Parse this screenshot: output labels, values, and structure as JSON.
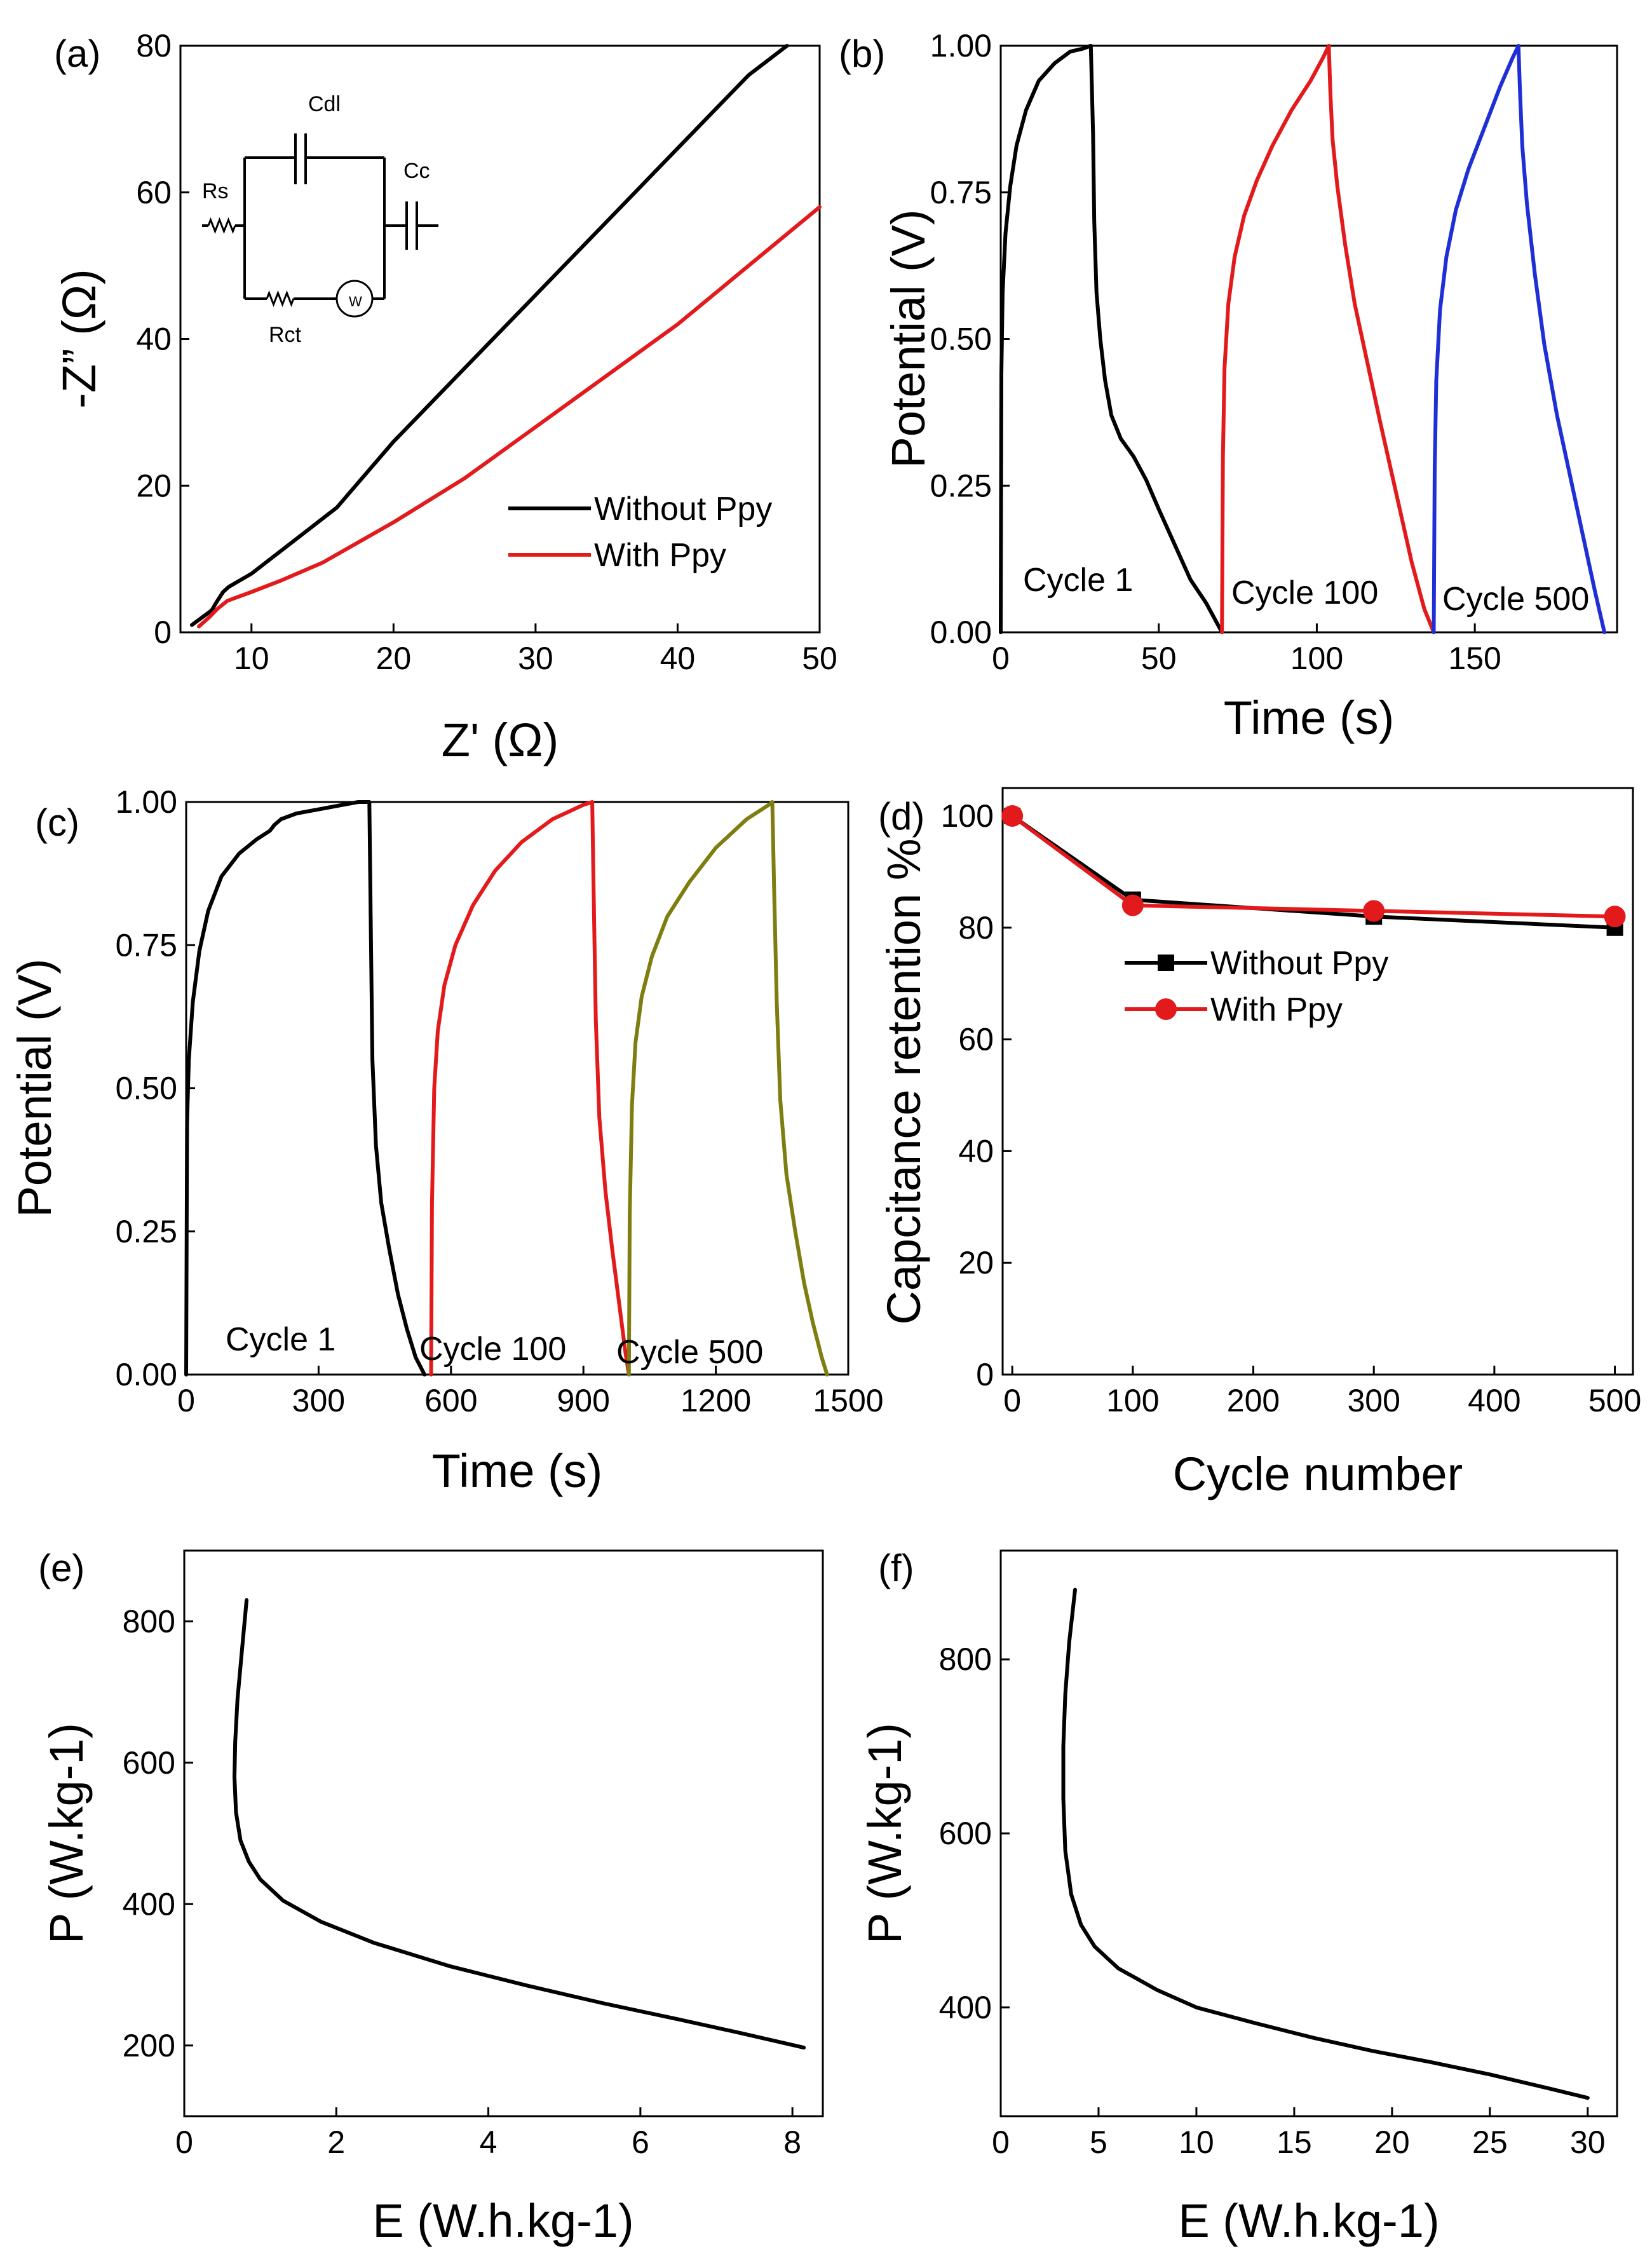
{
  "chart_data": [
    {
      "panel": "(a)",
      "type": "line",
      "xlabel": "Z' (Ω)",
      "ylabel": "-Z” (Ω)",
      "xlim": [
        5,
        50
      ],
      "ylim": [
        0,
        80
      ],
      "xticks": [
        10,
        20,
        30,
        40,
        50
      ],
      "yticks": [
        0,
        20,
        40,
        60,
        80
      ],
      "legend_position": "bottom-right",
      "series": [
        {
          "name": "Without Ppy",
          "color": "#000000",
          "x": [
            5.8,
            7.2,
            7.5,
            8.0,
            8.4,
            10,
            12,
            14,
            16,
            20,
            25,
            30,
            35,
            40,
            45,
            47.7
          ],
          "y": [
            1,
            3,
            4,
            5.5,
            6.2,
            8,
            11,
            14,
            17,
            26,
            36,
            46,
            56,
            66,
            76,
            80
          ]
        },
        {
          "name": "With Ppy",
          "color": "#e31a1c",
          "x": [
            6.3,
            7.0,
            7.6,
            8.3,
            10,
            12,
            15,
            20,
            25,
            30,
            35,
            40,
            45,
            50
          ],
          "y": [
            0.8,
            2,
            3.2,
            4.3,
            5.5,
            7,
            9.5,
            15,
            21,
            28,
            35,
            42,
            50,
            58
          ]
        }
      ],
      "inset": {
        "labels": [
          "Rs",
          "Cdl",
          "Cc",
          "Rct",
          "W"
        ]
      }
    },
    {
      "panel": "(b)",
      "type": "line",
      "xlabel": "Time (s)",
      "ylabel": "Potential (V)",
      "xlim": [
        0,
        195
      ],
      "ylim": [
        0,
        1.0
      ],
      "xticks": [
        0,
        50,
        100,
        150
      ],
      "yticks": [
        0.0,
        0.25,
        0.5,
        0.75,
        1.0
      ],
      "ytick_labels": [
        "0.00",
        "0.25",
        "0.50",
        "0.75",
        "1.00"
      ],
      "series": [
        {
          "name": "Cycle 1",
          "color": "#000000",
          "x": [
            0,
            0.2,
            0.6,
            1.5,
            3,
            5,
            8,
            12,
            17,
            22,
            26,
            28.5,
            29.2,
            29.6,
            30.3,
            31.5,
            33,
            35,
            38,
            42,
            46,
            50,
            55,
            60,
            65,
            70
          ],
          "y": [
            0,
            0.44,
            0.58,
            0.68,
            0.76,
            0.83,
            0.89,
            0.94,
            0.97,
            0.99,
            0.995,
            1.0,
            0.85,
            0.7,
            0.58,
            0.5,
            0.43,
            0.37,
            0.33,
            0.3,
            0.26,
            0.21,
            0.15,
            0.09,
            0.05,
            0.0
          ]
        },
        {
          "name": "Cycle 100",
          "color": "#e31a1c",
          "x": [
            70,
            70.3,
            70.8,
            72,
            74,
            77,
            81,
            86,
            92,
            98,
            102,
            103.8,
            104.3,
            105,
            106.5,
            109,
            112,
            116,
            120,
            125,
            130,
            134,
            137
          ],
          "y": [
            0,
            0.3,
            0.45,
            0.56,
            0.64,
            0.71,
            0.77,
            0.83,
            0.89,
            0.94,
            0.98,
            1.0,
            0.92,
            0.84,
            0.76,
            0.66,
            0.56,
            0.46,
            0.36,
            0.24,
            0.12,
            0.04,
            0.0
          ]
        },
        {
          "name": "Cycle 500",
          "color": "#1f2fd6",
          "x": [
            137,
            137.3,
            137.8,
            139,
            141,
            144,
            148,
            153,
            158,
            162,
            163.8,
            164.3,
            165,
            166.5,
            169,
            172,
            176,
            180,
            184,
            188,
            191
          ],
          "y": [
            0,
            0.28,
            0.43,
            0.55,
            0.64,
            0.72,
            0.79,
            0.86,
            0.93,
            0.98,
            1.0,
            0.92,
            0.83,
            0.73,
            0.61,
            0.49,
            0.37,
            0.27,
            0.17,
            0.07,
            0.0
          ]
        }
      ],
      "annotations": [
        "Cycle 1",
        "Cycle 100",
        "Cycle 500"
      ]
    },
    {
      "panel": "(c)",
      "type": "line",
      "xlabel": "Time (s)",
      "ylabel": "Potential (V)",
      "xlim": [
        0,
        1500
      ],
      "ylim": [
        0,
        1.0
      ],
      "xticks": [
        0,
        300,
        600,
        900,
        1200,
        1500
      ],
      "yticks": [
        0.0,
        0.25,
        0.5,
        0.75,
        1.0
      ],
      "ytick_labels": [
        "0.00",
        "0.25",
        "0.50",
        "0.75",
        "1.00"
      ],
      "series": [
        {
          "name": "Cycle 1",
          "color": "#000000",
          "x": [
            0,
            2,
            6,
            15,
            30,
            50,
            80,
            120,
            160,
            190,
            200,
            215,
            250,
            320,
            390,
            415,
            418,
            422,
            430,
            442,
            460,
            480,
            500,
            520,
            540
          ],
          "y": [
            0,
            0.44,
            0.55,
            0.65,
            0.74,
            0.81,
            0.87,
            0.91,
            0.935,
            0.95,
            0.96,
            0.97,
            0.98,
            0.99,
            1.0,
            1.0,
            0.8,
            0.55,
            0.4,
            0.3,
            0.22,
            0.14,
            0.08,
            0.03,
            0.0
          ]
        },
        {
          "name": "Cycle 100",
          "color": "#e31a1c",
          "x": [
            555,
            557,
            562,
            570,
            585,
            610,
            650,
            700,
            760,
            830,
            900,
            920,
            923,
            928,
            936,
            950,
            965,
            980,
            995,
            1003
          ],
          "y": [
            0,
            0.3,
            0.5,
            0.6,
            0.68,
            0.75,
            0.82,
            0.88,
            0.93,
            0.97,
            0.995,
            1.0,
            0.85,
            0.62,
            0.45,
            0.32,
            0.22,
            0.13,
            0.04,
            0.0
          ]
        },
        {
          "name": "Cycle 500",
          "color": "#7e7e10",
          "x": [
            1003,
            1005,
            1010,
            1018,
            1032,
            1055,
            1090,
            1140,
            1200,
            1270,
            1320,
            1328,
            1332,
            1338,
            1346,
            1360,
            1380,
            1400,
            1420,
            1440,
            1452
          ],
          "y": [
            0,
            0.28,
            0.47,
            0.58,
            0.66,
            0.73,
            0.8,
            0.86,
            0.92,
            0.97,
            0.995,
            1.0,
            0.85,
            0.65,
            0.48,
            0.35,
            0.25,
            0.16,
            0.09,
            0.03,
            0.0
          ]
        }
      ],
      "annotations": [
        "Cycle 1",
        "Cycle 100",
        "Cycle 500"
      ]
    },
    {
      "panel": "(d)",
      "type": "line",
      "markers": true,
      "xlabel": "Cycle number",
      "ylabel": "Capcitance retention %",
      "xlim": [
        -8,
        515
      ],
      "ylim": [
        0,
        105
      ],
      "xticks": [
        0,
        100,
        200,
        300,
        400,
        500
      ],
      "yticks": [
        0,
        20,
        40,
        60,
        80,
        100
      ],
      "legend_position": "upper-center",
      "series": [
        {
          "name": "Without Ppy",
          "color": "#000000",
          "marker": "square",
          "x": [
            0,
            100,
            300,
            500
          ],
          "y": [
            100,
            85,
            82,
            80
          ]
        },
        {
          "name": "With Ppy",
          "color": "#e31a1c",
          "marker": "circle",
          "x": [
            0,
            100,
            300,
            500
          ],
          "y": [
            100,
            84,
            83,
            82
          ]
        }
      ]
    },
    {
      "panel": "(e)",
      "type": "line",
      "xlabel": "E (W.h.kg-1)",
      "ylabel": "P (W.kg-1)",
      "xlim": [
        0,
        8.4
      ],
      "ylim": [
        100,
        900
      ],
      "xticks": [
        0,
        2,
        4,
        6,
        8
      ],
      "yticks": [
        200,
        400,
        600,
        800
      ],
      "series": [
        {
          "name": "P vs E",
          "color": "#000000",
          "x": [
            0.82,
            0.76,
            0.7,
            0.67,
            0.66,
            0.68,
            0.74,
            0.85,
            1.0,
            1.3,
            1.8,
            2.5,
            3.5,
            4.5,
            5.5,
            6.5,
            7.3,
            8.15
          ],
          "y": [
            830,
            760,
            690,
            630,
            580,
            530,
            490,
            460,
            435,
            405,
            375,
            345,
            312,
            285,
            260,
            237,
            218,
            197
          ]
        }
      ]
    },
    {
      "panel": "(f)",
      "type": "line",
      "xlabel": "E (W.h.kg-1)",
      "ylabel": "P (W.kg-1)",
      "xlim": [
        0,
        31.5
      ],
      "ylim": [
        275,
        925
      ],
      "xticks": [
        0,
        5,
        10,
        15,
        20,
        25,
        30
      ],
      "yticks": [
        400,
        600,
        800
      ],
      "series": [
        {
          "name": "P vs E",
          "color": "#000000",
          "x": [
            3.8,
            3.5,
            3.3,
            3.2,
            3.2,
            3.3,
            3.6,
            4.1,
            4.8,
            6,
            8,
            10,
            13,
            16,
            19,
            22,
            25,
            28,
            30
          ],
          "y": [
            880,
            820,
            760,
            700,
            640,
            580,
            530,
            495,
            470,
            445,
            420,
            400,
            382,
            365,
            350,
            337,
            323,
            307,
            296
          ]
        }
      ]
    }
  ]
}
